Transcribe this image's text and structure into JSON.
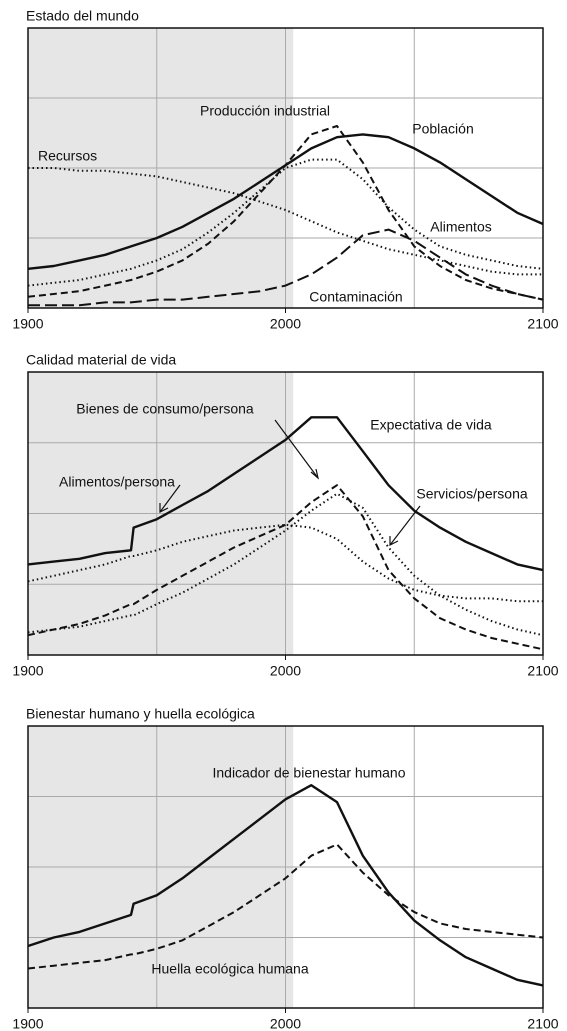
{
  "chart_data": [
    {
      "type": "line",
      "title": "Estado del mundo",
      "x": [
        1900,
        1910,
        1920,
        1930,
        1940,
        1950,
        1960,
        1970,
        1980,
        1990,
        2000,
        2010,
        2020,
        2030,
        2040,
        2050,
        2060,
        2070,
        2080,
        2090,
        2100
      ],
      "xlim": [
        1900,
        2100
      ],
      "xticks": [
        1900,
        2000,
        2100
      ],
      "xgrid": [
        1900,
        1950,
        2000,
        2050,
        2100
      ],
      "ylim": [
        0,
        100
      ],
      "ygrid": [
        25,
        50,
        75
      ],
      "shade": [
        1900,
        2003
      ],
      "series": [
        {
          "name": "Población",
          "color": "#111111",
          "style": "solid",
          "values": [
            14,
            15,
            17,
            19,
            22,
            25,
            29,
            34,
            39,
            45,
            51,
            57,
            61,
            62,
            61,
            57,
            52,
            46,
            40,
            34,
            30
          ]
        },
        {
          "name": "Producción industrial",
          "color": "#111111",
          "style": "dashed",
          "values": [
            4,
            5,
            6,
            8,
            10,
            13,
            17,
            23,
            31,
            41,
            51,
            62,
            65,
            52,
            35,
            22,
            15,
            10,
            7,
            5,
            3
          ]
        },
        {
          "name": "Recursos",
          "color": "#111111",
          "style": "dotted",
          "values": [
            50,
            50,
            49,
            49,
            48,
            47,
            45,
            43,
            41,
            38,
            35,
            31,
            27,
            24,
            21,
            19,
            17,
            15,
            13,
            12,
            12
          ]
        },
        {
          "name": "Alimentos",
          "color": "#111111",
          "style": "dotted",
          "values": [
            8,
            9,
            10,
            12,
            14,
            17,
            21,
            27,
            34,
            42,
            50,
            53,
            53,
            46,
            36,
            28,
            22,
            19,
            17,
            15,
            14
          ]
        },
        {
          "name": "Contaminación",
          "color": "#111111",
          "style": "longdash",
          "values": [
            1,
            1,
            1,
            2,
            2,
            3,
            3,
            4,
            5,
            6,
            8,
            12,
            18,
            26,
            28,
            24,
            18,
            12,
            8,
            5,
            3
          ]
        }
      ]
    },
    {
      "type": "line",
      "title": "Calidad material de vida",
      "x": [
        1900,
        1910,
        1920,
        1930,
        1940,
        1941,
        1950,
        1960,
        1970,
        1980,
        1990,
        2000,
        2010,
        2020,
        2030,
        2040,
        2050,
        2060,
        2070,
        2080,
        2090,
        2100
      ],
      "xlim": [
        1900,
        2100
      ],
      "xticks": [
        1900,
        2000,
        2100
      ],
      "xgrid": [
        1900,
        1950,
        2000,
        2050,
        2100
      ],
      "ylim": [
        0,
        100
      ],
      "ygrid": [
        25,
        50,
        75
      ],
      "shade": [
        1900,
        2003
      ],
      "series": [
        {
          "name": "Expectativa de vida",
          "color": "#111111",
          "style": "solid",
          "values": [
            32,
            33,
            34,
            36,
            37,
            45,
            48,
            53,
            58,
            64,
            70,
            76,
            84,
            84,
            72,
            60,
            51,
            45,
            40,
            36,
            32,
            30
          ]
        },
        {
          "name": "Bienes de consumo/persona",
          "color": "#111111",
          "style": "dashed",
          "values": [
            7,
            9,
            11,
            14,
            18,
            18,
            23,
            28,
            33,
            38,
            42,
            46,
            54,
            60,
            49,
            30,
            20,
            13,
            9,
            6,
            4,
            2
          ]
        },
        {
          "name": "Alimentos/persona",
          "color": "#111111",
          "style": "dotted",
          "values": [
            26,
            28,
            30,
            32,
            35,
            35,
            37,
            40,
            42,
            44,
            45,
            46,
            45,
            41,
            33,
            27,
            23,
            21,
            20,
            20,
            19,
            19
          ]
        },
        {
          "name": "Servicios/persona",
          "color": "#111111",
          "style": "dotted",
          "values": [
            8,
            9,
            10,
            12,
            14,
            14,
            18,
            22,
            27,
            32,
            38,
            44,
            51,
            57,
            52,
            38,
            28,
            21,
            16,
            12,
            9,
            7
          ]
        }
      ]
    },
    {
      "type": "line",
      "title": "Bienestar humano y huella ecológica",
      "x": [
        1900,
        1910,
        1920,
        1930,
        1940,
        1941,
        1950,
        1960,
        1970,
        1980,
        1990,
        2000,
        2010,
        2020,
        2030,
        2040,
        2050,
        2060,
        2070,
        2080,
        2090,
        2100
      ],
      "xlim": [
        1900,
        2100
      ],
      "xticks": [
        1900,
        2000,
        2100
      ],
      "xgrid": [
        1900,
        1950,
        2000,
        2050,
        2100
      ],
      "ylim": [
        0,
        100
      ],
      "ygrid": [
        25,
        50,
        75
      ],
      "shade": [
        1900,
        2003
      ],
      "series": [
        {
          "name": "Indicador de bienestar humano",
          "color": "#111111",
          "style": "solid",
          "values": [
            22,
            25,
            27,
            30,
            33,
            37,
            40,
            46,
            53,
            60,
            67,
            74,
            79,
            73,
            54,
            41,
            31,
            24,
            18,
            14,
            10,
            8
          ]
        },
        {
          "name": "Huella ecológica humana",
          "color": "#111111",
          "style": "dashed",
          "values": [
            14,
            15,
            16,
            17,
            19,
            19,
            21,
            24,
            29,
            34,
            40,
            46,
            54,
            58,
            48,
            40,
            34,
            30,
            28,
            27,
            26,
            25
          ]
        }
      ]
    }
  ]
}
